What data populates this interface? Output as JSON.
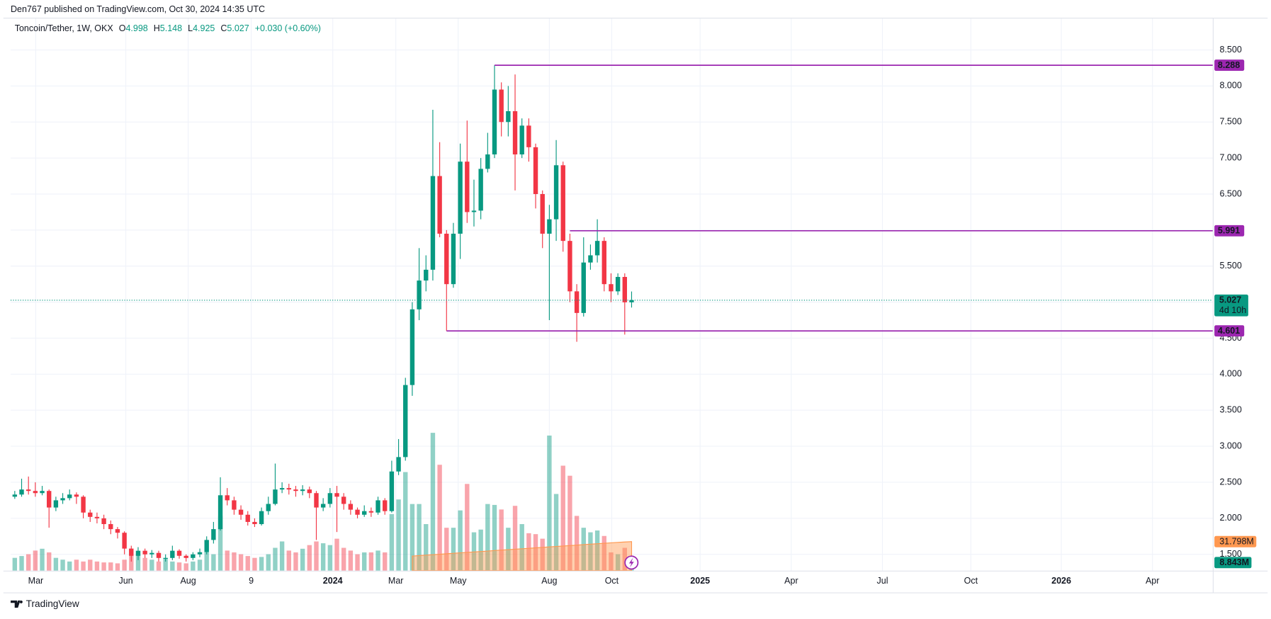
{
  "header": {
    "published": "Den767 published on TradingView.com, Oct 30, 2024 14:35 UTC"
  },
  "footer": {
    "brand": "TradingView"
  },
  "chart_data": {
    "type": "candlestick",
    "legend": {
      "symbol": "Toncoin/Tether, 1W, OKX",
      "o": "O",
      "h": "H",
      "l": "L",
      "c": "C",
      "change": "+0.030 (+0.60%)"
    },
    "open": [
      2.3,
      2.33,
      2.4,
      2.38,
      2.35,
      2.38,
      2.15,
      2.25,
      2.28,
      2.33,
      2.3,
      2.08,
      2.02,
      2.0,
      1.92,
      1.85,
      1.8,
      1.58,
      1.48,
      1.55,
      1.5,
      1.52,
      1.45,
      1.45,
      1.55,
      1.48,
      1.45,
      1.5,
      1.53,
      1.7,
      1.85,
      2.32,
      2.25,
      2.12,
      2.05,
      1.95,
      1.92,
      2.1,
      2.2,
      2.4,
      2.42,
      2.4,
      2.38,
      2.4,
      2.35,
      2.15,
      2.2,
      2.35,
      2.3,
      2.2,
      2.12,
      2.05,
      2.1,
      2.08,
      2.25,
      2.1,
      2.65,
      2.85,
      3.85,
      4.9,
      5.3,
      5.45,
      6.75,
      5.95,
      5.25,
      5.95,
      6.95,
      6.25,
      6.27,
      6.85,
      7.05,
      7.95,
      7.5,
      7.65,
      7.05,
      7.45,
      7.15,
      6.5,
      5.95,
      6.15,
      6.9,
      5.85,
      5.15,
      4.85,
      5.55,
      5.65,
      5.85,
      5.25,
      5.15,
      5.35,
      4.998
    ],
    "high": [
      2.38,
      2.55,
      2.58,
      2.5,
      2.45,
      2.4,
      2.3,
      2.35,
      2.4,
      2.36,
      2.32,
      2.12,
      2.08,
      2.05,
      1.97,
      1.88,
      1.82,
      1.62,
      1.6,
      1.58,
      1.56,
      1.55,
      1.5,
      1.62,
      1.57,
      1.5,
      1.53,
      1.58,
      1.75,
      1.95,
      2.57,
      2.42,
      2.3,
      2.18,
      2.1,
      2.0,
      2.15,
      2.3,
      2.76,
      2.5,
      2.48,
      2.45,
      2.46,
      2.44,
      2.38,
      2.28,
      2.42,
      2.45,
      2.35,
      2.25,
      2.15,
      2.18,
      2.15,
      2.3,
      2.28,
      2.8,
      3.1,
      3.95,
      5.0,
      5.75,
      5.65,
      7.67,
      7.22,
      6.0,
      6.1,
      7.2,
      7.52,
      6.7,
      7.0,
      7.35,
      8.288,
      8.05,
      8.0,
      8.16,
      7.55,
      7.55,
      7.2,
      6.55,
      6.35,
      7.25,
      6.95,
      5.95,
      5.25,
      5.9,
      5.8,
      6.15,
      5.9,
      5.4,
      5.4,
      5.4,
      5.148
    ],
    "low": [
      2.27,
      2.3,
      2.33,
      2.3,
      2.32,
      1.87,
      2.1,
      2.2,
      2.25,
      2.2,
      2.0,
      1.95,
      1.93,
      1.85,
      1.78,
      1.72,
      1.5,
      1.4,
      1.42,
      1.45,
      1.45,
      1.4,
      1.4,
      1.42,
      1.44,
      1.4,
      1.42,
      1.46,
      1.5,
      1.65,
      1.83,
      2.18,
      2.05,
      1.98,
      1.9,
      1.88,
      1.9,
      2.05,
      2.18,
      2.35,
      2.33,
      2.3,
      2.32,
      2.28,
      1.7,
      2.1,
      2.15,
      1.81,
      2.12,
      2.05,
      2.0,
      2.02,
      2.02,
      2.05,
      2.05,
      2.08,
      2.6,
      2.8,
      3.7,
      4.75,
      5.15,
      5.3,
      5.9,
      4.601,
      5.2,
      5.6,
      6.1,
      6.05,
      6.15,
      6.8,
      7.0,
      7.3,
      7.3,
      6.55,
      7.0,
      6.95,
      6.3,
      5.75,
      4.75,
      5.85,
      5.7,
      5.0,
      4.45,
      4.8,
      5.45,
      5.55,
      5.15,
      5.0,
      5.1,
      4.55,
      4.925
    ],
    "close": [
      2.33,
      2.4,
      2.38,
      2.35,
      2.38,
      2.15,
      2.25,
      2.28,
      2.33,
      2.3,
      2.08,
      2.02,
      2.0,
      1.92,
      1.85,
      1.8,
      1.58,
      1.48,
      1.55,
      1.5,
      1.52,
      1.45,
      1.45,
      1.55,
      1.48,
      1.45,
      1.5,
      1.53,
      1.7,
      1.85,
      2.32,
      2.25,
      2.12,
      2.05,
      1.95,
      1.92,
      2.1,
      2.2,
      2.4,
      2.42,
      2.4,
      2.38,
      2.4,
      2.35,
      2.15,
      2.2,
      2.35,
      2.3,
      2.2,
      2.12,
      2.05,
      2.1,
      2.08,
      2.25,
      2.1,
      2.65,
      2.85,
      3.85,
      4.9,
      5.3,
      5.45,
      6.75,
      5.95,
      5.25,
      5.95,
      6.95,
      6.25,
      6.27,
      6.85,
      7.05,
      7.95,
      7.5,
      7.65,
      7.05,
      7.45,
      7.15,
      6.5,
      5.95,
      6.15,
      6.9,
      5.85,
      5.15,
      4.85,
      5.55,
      5.65,
      5.85,
      5.25,
      5.15,
      5.35,
      4.998,
      5.027
    ],
    "volume": [
      14,
      16,
      18,
      22,
      24,
      20,
      14,
      12,
      10,
      12,
      10,
      12,
      10,
      9,
      9,
      8,
      12,
      24,
      18,
      14,
      12,
      10,
      14,
      10,
      9,
      8,
      10,
      12,
      20,
      18,
      60,
      22,
      20,
      18,
      16,
      14,
      15,
      18,
      25,
      32,
      22,
      20,
      24,
      28,
      32,
      30,
      28,
      35,
      25,
      22,
      18,
      20,
      20,
      22,
      20,
      62,
      78,
      108,
      73,
      73,
      51,
      151,
      116,
      47,
      47,
      66,
      95,
      42,
      45,
      73,
      72,
      67,
      47,
      71,
      51,
      41,
      40,
      35,
      148,
      84,
      115,
      104,
      60,
      47,
      42,
      44,
      38,
      20,
      18,
      25,
      8.843
    ],
    "volume_ma": [
      null,
      null,
      null,
      null,
      null,
      null,
      null,
      null,
      null,
      null,
      null,
      null,
      null,
      null,
      null,
      null,
      null,
      null,
      null,
      null,
      null,
      null,
      null,
      null,
      null,
      null,
      null,
      null,
      null,
      null,
      null,
      null,
      null,
      null,
      null,
      null,
      null,
      null,
      null,
      null,
      null,
      null,
      null,
      null,
      null,
      null,
      null,
      null,
      null,
      null,
      null,
      null,
      null,
      null,
      null,
      null,
      null,
      null,
      16,
      16.5,
      17,
      17.5,
      18,
      18.5,
      19,
      19.5,
      20,
      20.5,
      21,
      21.5,
      22,
      22.5,
      23,
      23.5,
      24,
      24.5,
      25,
      25.5,
      26,
      26.5,
      27,
      27.5,
      28,
      28.5,
      29,
      29.5,
      30,
      30.5,
      31,
      31.4,
      31.798
    ],
    "volume_ma_label": "31.798M",
    "last_volume_label": "8.843M",
    "countdown": "4d 10h",
    "hlines": [
      {
        "value": 8.288,
        "start": 70
      },
      {
        "value": 5.991,
        "start": 81
      },
      {
        "value": 4.601,
        "start": 63
      }
    ],
    "xlim": [
      -0.6,
      174.8
    ],
    "xticks": [
      {
        "value": 3.06,
        "label": "Mar"
      },
      {
        "value": 16.2,
        "label": "Jun"
      },
      {
        "value": 25.3,
        "label": "Aug"
      },
      {
        "value": 34.5,
        "label": "9"
      },
      {
        "value": 46.4,
        "label": "2024"
      },
      {
        "value": 55.6,
        "label": "Mar"
      },
      {
        "value": 64.7,
        "label": "May"
      },
      {
        "value": 78.0,
        "label": "Aug"
      },
      {
        "value": 87.1,
        "label": "Oct"
      },
      {
        "value": 100.0,
        "label": "2025"
      },
      {
        "value": 113.3,
        "label": "Apr"
      },
      {
        "value": 126.6,
        "label": "Jul"
      },
      {
        "value": 139.5,
        "label": "Oct"
      },
      {
        "value": 152.7,
        "label": "2026"
      },
      {
        "value": 166.0,
        "label": "Apr"
      }
    ],
    "ylim": [
      1.274,
      8.947
    ],
    "yticks": [
      {
        "value": 1.5,
        "label": "1.500"
      },
      {
        "value": 2,
        "label": "2.000"
      },
      {
        "value": 2.5,
        "label": "2.500"
      },
      {
        "value": 3,
        "label": "3.000"
      },
      {
        "value": 3.5,
        "label": "3.500"
      },
      {
        "value": 4,
        "label": "4.000"
      },
      {
        "value": 4.5,
        "label": "4.500"
      },
      {
        "value": 5,
        "label": "5.000"
      },
      {
        "value": 5.5,
        "label": "5.500"
      },
      {
        "value": 6,
        "label": "6.000"
      },
      {
        "value": 6.5,
        "label": "6.500"
      },
      {
        "value": 7,
        "label": "7.000"
      },
      {
        "value": 7.5,
        "label": "7.500"
      },
      {
        "value": 8,
        "label": "8.000"
      },
      {
        "value": 8.5,
        "label": "8.500"
      }
    ],
    "grid": true,
    "up_color": "#089981",
    "down_color": "#f23645",
    "line_color": "#9c27b0",
    "ma_color": "#ff9850"
  }
}
